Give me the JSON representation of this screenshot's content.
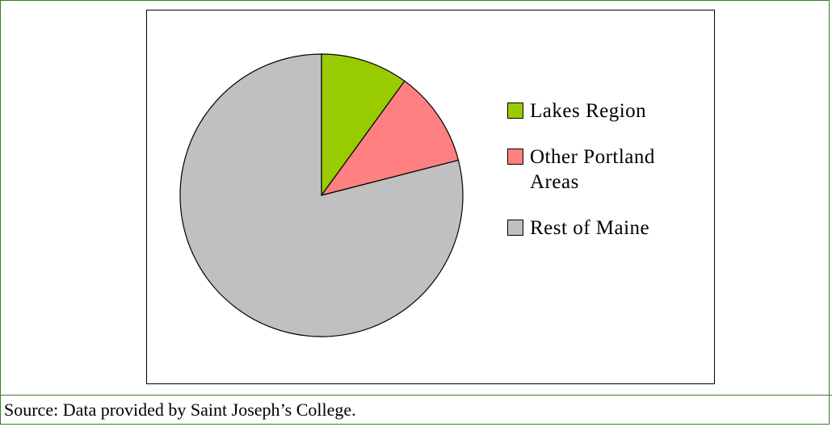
{
  "chart_data": {
    "type": "pie",
    "categories": [
      "Lakes Region",
      "Other Portland Areas",
      "Rest of Maine"
    ],
    "values": [
      10,
      11,
      79
    ],
    "colors": [
      "#99cc00",
      "#ff8080",
      "#c0c0c0"
    ]
  },
  "source": "Source:  Data provided by Saint Joseph’s College."
}
